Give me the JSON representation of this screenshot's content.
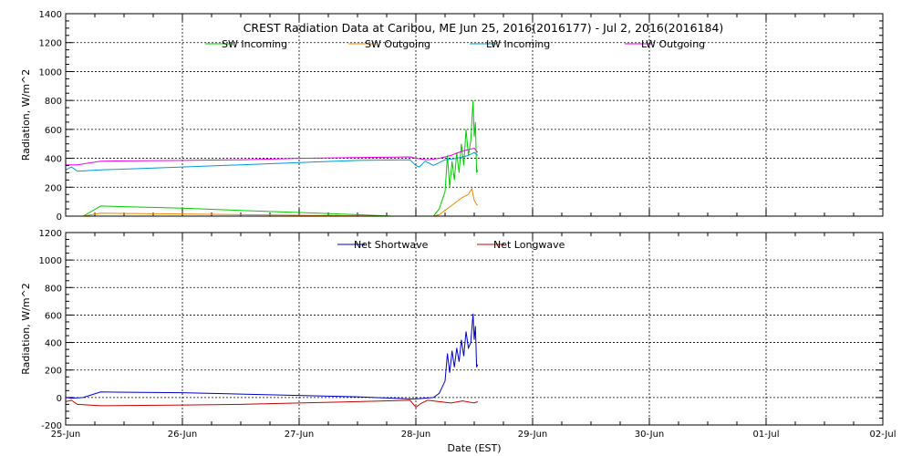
{
  "title": "CREST Radiation Data at Caribou, ME   Jun 25, 2016(2016177) - Jul  2, 2016(2016184)",
  "x_axis_label": "Date (EST)",
  "chart_data": [
    {
      "type": "line",
      "ylabel": "Radiation, W/m^2",
      "xlabel": "",
      "xlim": [
        "2016-06-25",
        "2016-07-02"
      ],
      "ylim": [
        0,
        1400
      ],
      "yticks": [
        0,
        200,
        400,
        600,
        800,
        1000,
        1200,
        1400
      ],
      "xtick_labels": [
        "25-Jun",
        "26-Jun",
        "27-Jun",
        "28-Jun",
        "29-Jun",
        "30-Jun",
        "01-Jul",
        "02-Jul"
      ],
      "grid": true,
      "legend_position": "top",
      "series": [
        {
          "name": "SW Incoming",
          "color": "#00cc00",
          "x": [
            0.0,
            0.1,
            0.15,
            0.3,
            1.0,
            1.5,
            2.0,
            2.5,
            2.8,
            3.0,
            3.15,
            3.2,
            3.25,
            3.27,
            3.29,
            3.31,
            3.33,
            3.35,
            3.37,
            3.39,
            3.41,
            3.43,
            3.45,
            3.47,
            3.49,
            3.5,
            3.51,
            3.52,
            3.53
          ],
          "y": [
            null,
            null,
            0,
            70,
            55,
            40,
            25,
            10,
            0,
            0,
            0,
            50,
            170,
            420,
            200,
            380,
            250,
            440,
            300,
            500,
            350,
            600,
            420,
            520,
            800,
            550,
            650,
            300,
            320
          ]
        },
        {
          "name": "SW Outgoing",
          "color": "#ee8800",
          "x": [
            0.0,
            0.1,
            0.15,
            0.3,
            1.0,
            1.5,
            2.0,
            2.5,
            2.8,
            3.0,
            3.15,
            3.2,
            3.25,
            3.3,
            3.35,
            3.4,
            3.45,
            3.48,
            3.5,
            3.52,
            3.53
          ],
          "y": [
            null,
            null,
            0,
            20,
            15,
            10,
            6,
            2,
            0,
            0,
            0,
            10,
            40,
            70,
            100,
            130,
            150,
            190,
            110,
            80,
            75
          ]
        },
        {
          "name": "LW Incoming",
          "color": "#0099dd",
          "x": [
            0.0,
            0.05,
            0.1,
            0.3,
            1.0,
            1.5,
            2.0,
            2.5,
            2.95,
            3.0,
            3.03,
            3.08,
            3.15,
            3.25,
            3.35,
            3.45,
            3.5,
            3.53
          ],
          "y": [
            320,
            340,
            310,
            320,
            340,
            355,
            370,
            385,
            390,
            350,
            340,
            380,
            350,
            390,
            400,
            420,
            440,
            420
          ]
        },
        {
          "name": "LW Outgoing",
          "color": "#ee00ee",
          "x": [
            0.0,
            0.1,
            0.3,
            1.0,
            1.5,
            2.0,
            2.5,
            2.95,
            3.0,
            3.1,
            3.2,
            3.3,
            3.4,
            3.5,
            3.53
          ],
          "y": [
            355,
            355,
            380,
            385,
            390,
            400,
            405,
            410,
            400,
            390,
            400,
            420,
            450,
            470,
            440
          ]
        }
      ]
    },
    {
      "type": "line",
      "ylabel": "Radiation, W/m^2",
      "xlabel": "Date (EST)",
      "xlim": [
        "2016-06-25",
        "2016-07-02"
      ],
      "ylim": [
        -200,
        1200
      ],
      "yticks": [
        -200,
        0,
        200,
        400,
        600,
        800,
        1000,
        1200
      ],
      "xtick_labels": [
        "25-Jun",
        "26-Jun",
        "27-Jun",
        "28-Jun",
        "29-Jun",
        "30-Jun",
        "01-Jul",
        "02-Jul"
      ],
      "grid": true,
      "legend_position": "top",
      "series": [
        {
          "name": "Net Shortwave",
          "color": "#0000cc",
          "x": [
            0.0,
            0.05,
            0.15,
            0.3,
            1.0,
            1.5,
            2.0,
            2.5,
            2.95,
            3.0,
            3.15,
            3.2,
            3.25,
            3.27,
            3.29,
            3.31,
            3.33,
            3.35,
            3.37,
            3.39,
            3.41,
            3.43,
            3.45,
            3.47,
            3.49,
            3.5,
            3.51,
            3.52,
            3.53
          ],
          "y": [
            0,
            -5,
            0,
            40,
            35,
            25,
            15,
            5,
            -10,
            -10,
            0,
            30,
            120,
            320,
            180,
            340,
            220,
            360,
            260,
            420,
            300,
            480,
            360,
            400,
            610,
            420,
            520,
            220,
            240
          ]
        },
        {
          "name": "Net Longwave",
          "color": "#cc0000",
          "x": [
            0.0,
            0.05,
            0.1,
            0.3,
            1.0,
            1.5,
            2.0,
            2.5,
            2.95,
            3.0,
            3.05,
            3.1,
            3.2,
            3.3,
            3.4,
            3.5,
            3.53
          ],
          "y": [
            -30,
            -20,
            -50,
            -60,
            -55,
            -50,
            -40,
            -30,
            -20,
            -70,
            -40,
            -20,
            -30,
            -40,
            -25,
            -40,
            -30
          ]
        }
      ]
    }
  ]
}
